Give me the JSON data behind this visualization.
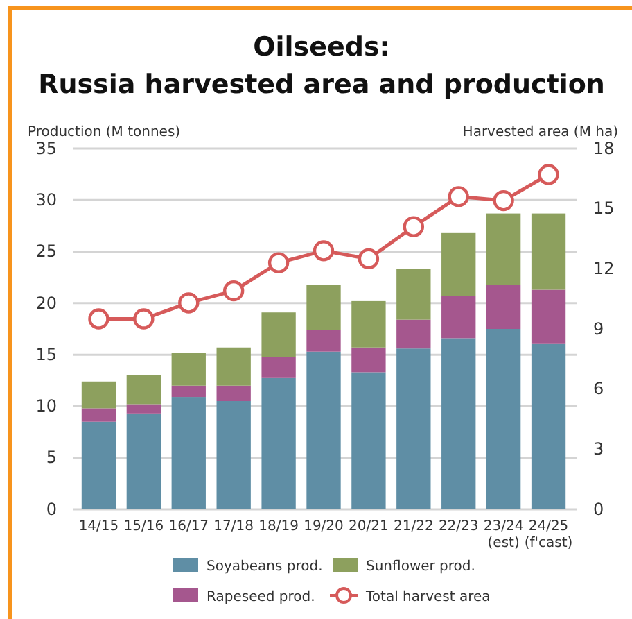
{
  "chart_data": {
    "type": "bar",
    "title": "Oilseeds:\nRussia harvested area and production",
    "ylabel": "Production (M tonnes)",
    "y2label": "Harvested area (M ha)",
    "categories": [
      "14/15",
      "15/16",
      "16/17",
      "17/18",
      "18/19",
      "19/20",
      "20/21",
      "21/22",
      "22/23",
      "23/24\n(est)",
      "24/25\n(f'cast)"
    ],
    "stacked": true,
    "series": [
      {
        "name": "Soyabeans prod.",
        "color": "#5f8ea5",
        "values": [
          8.5,
          9.3,
          10.9,
          10.5,
          12.8,
          15.3,
          13.3,
          15.6,
          16.6,
          17.5,
          16.1
        ]
      },
      {
        "name": "Rapeseed prod.",
        "color": "#a5578e",
        "values": [
          1.3,
          0.9,
          1.1,
          1.5,
          2.0,
          2.1,
          2.4,
          2.8,
          4.1,
          4.3,
          5.2
        ]
      },
      {
        "name": "Sunflower prod.",
        "color": "#8da05e",
        "values": [
          2.6,
          2.8,
          3.2,
          3.7,
          4.3,
          4.4,
          4.5,
          4.9,
          6.1,
          6.9,
          7.4
        ]
      },
      {
        "name": "Total harvest area",
        "type": "line",
        "axis": "y2",
        "color": "#d65a5a",
        "marker": "circle",
        "values": [
          9.5,
          9.5,
          10.3,
          10.9,
          12.3,
          12.9,
          12.5,
          14.1,
          15.6,
          15.4,
          16.7
        ]
      }
    ],
    "ylim": [
      0,
      35
    ],
    "yticks": [
      0,
      5,
      10,
      15,
      20,
      25,
      30,
      35
    ],
    "y2lim": [
      0,
      18
    ],
    "y2ticks": [
      0,
      3,
      6,
      9,
      12,
      15,
      18
    ],
    "grid": "y",
    "legend": "bottom"
  }
}
